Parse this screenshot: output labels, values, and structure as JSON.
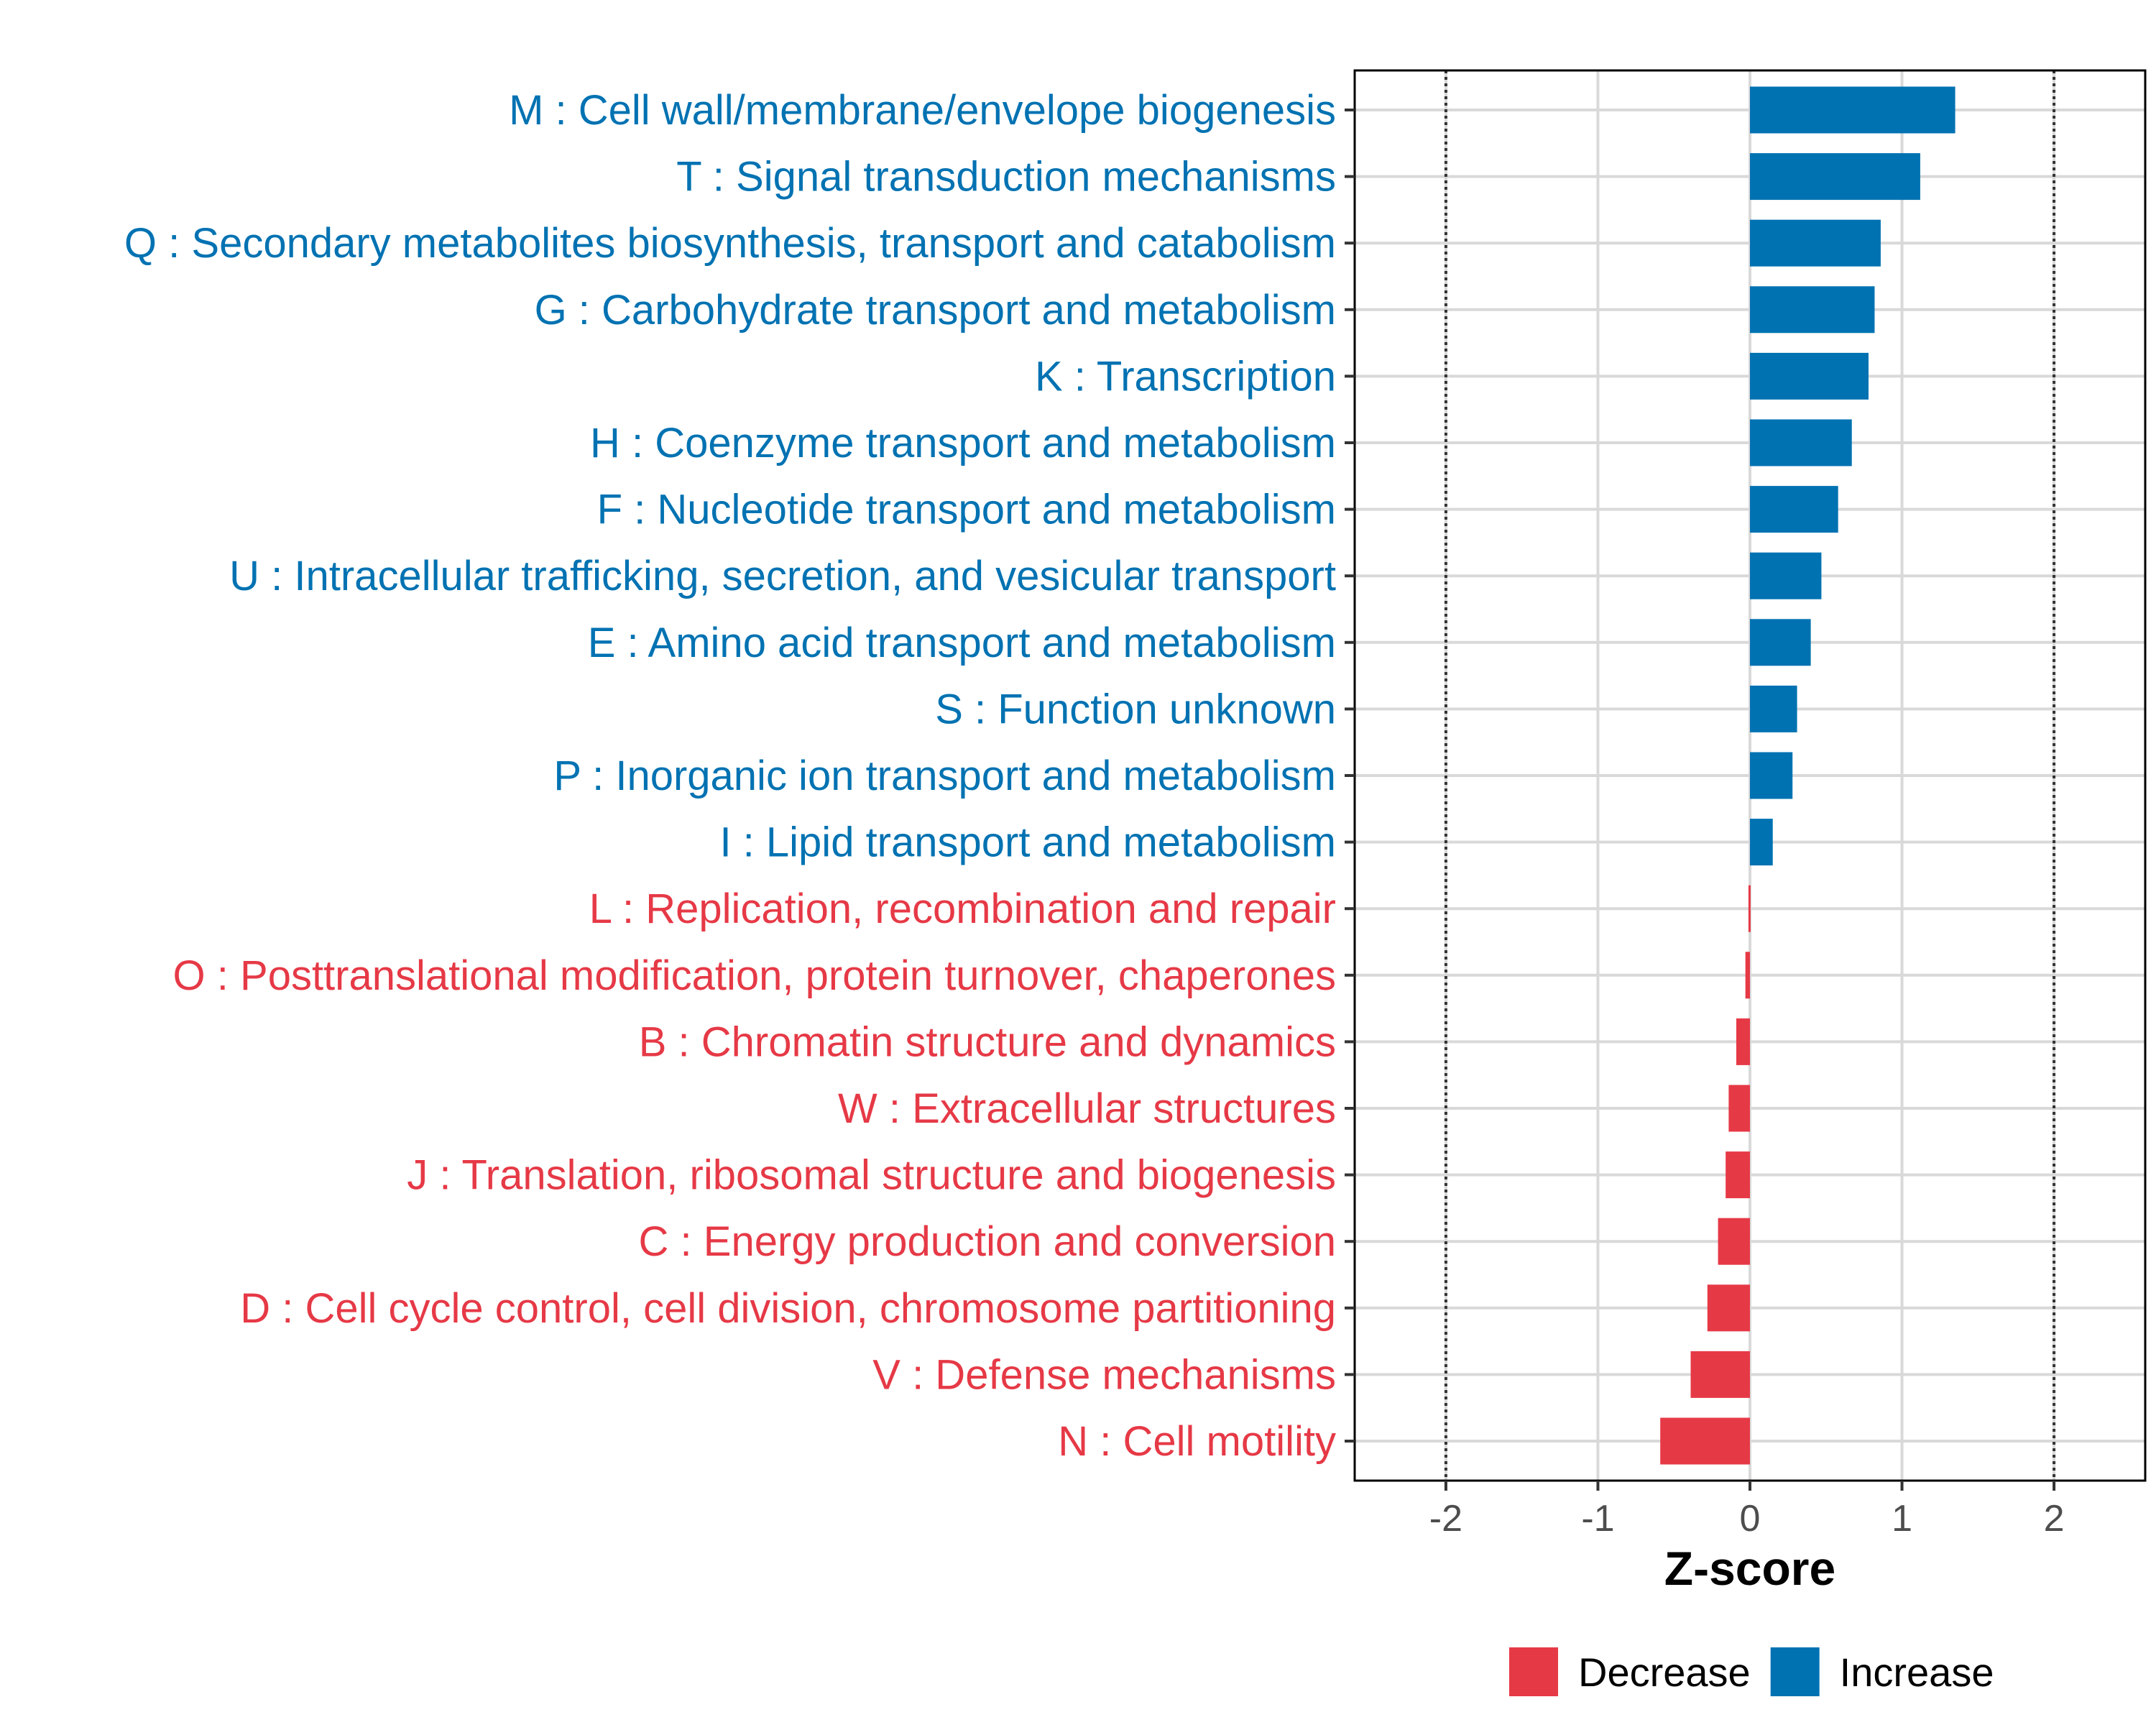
{
  "chart_data": {
    "type": "bar",
    "orientation": "horizontal",
    "xlabel": "Z-score",
    "xlim": [
      -2.6,
      2.6
    ],
    "xticks": [
      -2,
      -1,
      0,
      1,
      2
    ],
    "xtick_labels": [
      "-2",
      "-1",
      "0",
      "1",
      "2"
    ],
    "reference_lines": [
      -2,
      2
    ],
    "grid": true,
    "legend_position": "bottom",
    "colors": {
      "Increase": "#0072b2",
      "Decrease": "#e63946"
    },
    "legend": [
      {
        "label": "Decrease",
        "key": "Decrease"
      },
      {
        "label": "Increase",
        "key": "Increase"
      }
    ],
    "categories": [
      {
        "label": "M : Cell wall/membrane/envelope biogenesis",
        "value": 1.35,
        "group": "Increase"
      },
      {
        "label": "T : Signal transduction mechanisms",
        "value": 1.12,
        "group": "Increase"
      },
      {
        "label": "Q : Secondary metabolites biosynthesis, transport and catabolism",
        "value": 0.86,
        "group": "Increase"
      },
      {
        "label": "G : Carbohydrate transport and metabolism",
        "value": 0.82,
        "group": "Increase"
      },
      {
        "label": "K : Transcription",
        "value": 0.78,
        "group": "Increase"
      },
      {
        "label": "H : Coenzyme transport and metabolism",
        "value": 0.67,
        "group": "Increase"
      },
      {
        "label": "F : Nucleotide transport and metabolism",
        "value": 0.58,
        "group": "Increase"
      },
      {
        "label": "U : Intracellular trafficking, secretion, and vesicular transport",
        "value": 0.47,
        "group": "Increase"
      },
      {
        "label": "E : Amino acid transport and metabolism",
        "value": 0.4,
        "group": "Increase"
      },
      {
        "label": "S : Function unknown",
        "value": 0.31,
        "group": "Increase"
      },
      {
        "label": "P : Inorganic ion transport and metabolism",
        "value": 0.28,
        "group": "Increase"
      },
      {
        "label": "I : Lipid transport and metabolism",
        "value": 0.15,
        "group": "Increase"
      },
      {
        "label": "L : Replication, recombination and repair",
        "value": -0.01,
        "group": "Decrease"
      },
      {
        "label": "O : Posttranslational modification, protein turnover, chaperones",
        "value": -0.03,
        "group": "Decrease"
      },
      {
        "label": "B : Chromatin structure and dynamics",
        "value": -0.09,
        "group": "Decrease"
      },
      {
        "label": "W : Extracellular structures",
        "value": -0.14,
        "group": "Decrease"
      },
      {
        "label": "J : Translation, ribosomal structure and biogenesis",
        "value": -0.16,
        "group": "Decrease"
      },
      {
        "label": "C : Energy production and conversion",
        "value": -0.21,
        "group": "Decrease"
      },
      {
        "label": "D : Cell cycle control, cell division, chromosome partitioning",
        "value": -0.28,
        "group": "Decrease"
      },
      {
        "label": "V : Defense mechanisms",
        "value": -0.39,
        "group": "Decrease"
      },
      {
        "label": "N : Cell motility",
        "value": -0.59,
        "group": "Decrease"
      }
    ]
  }
}
